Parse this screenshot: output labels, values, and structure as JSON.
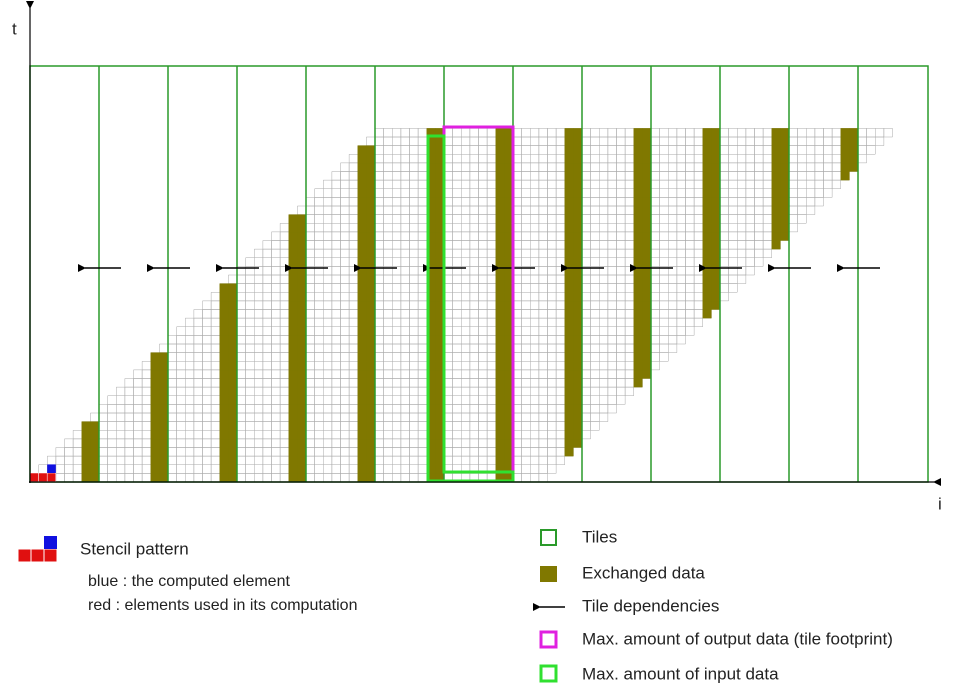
{
  "axes": {
    "t": "t",
    "i": "i"
  },
  "stencil": {
    "title": "Stencil pattern",
    "blue": "blue : the computed element",
    "red": "red : elements used in its computation"
  },
  "legend": [
    "Tiles",
    "Exchanged data",
    "Tile dependencies",
    "Max. amount of output data (tile footprint)",
    "Max. amount of input data"
  ]
}
